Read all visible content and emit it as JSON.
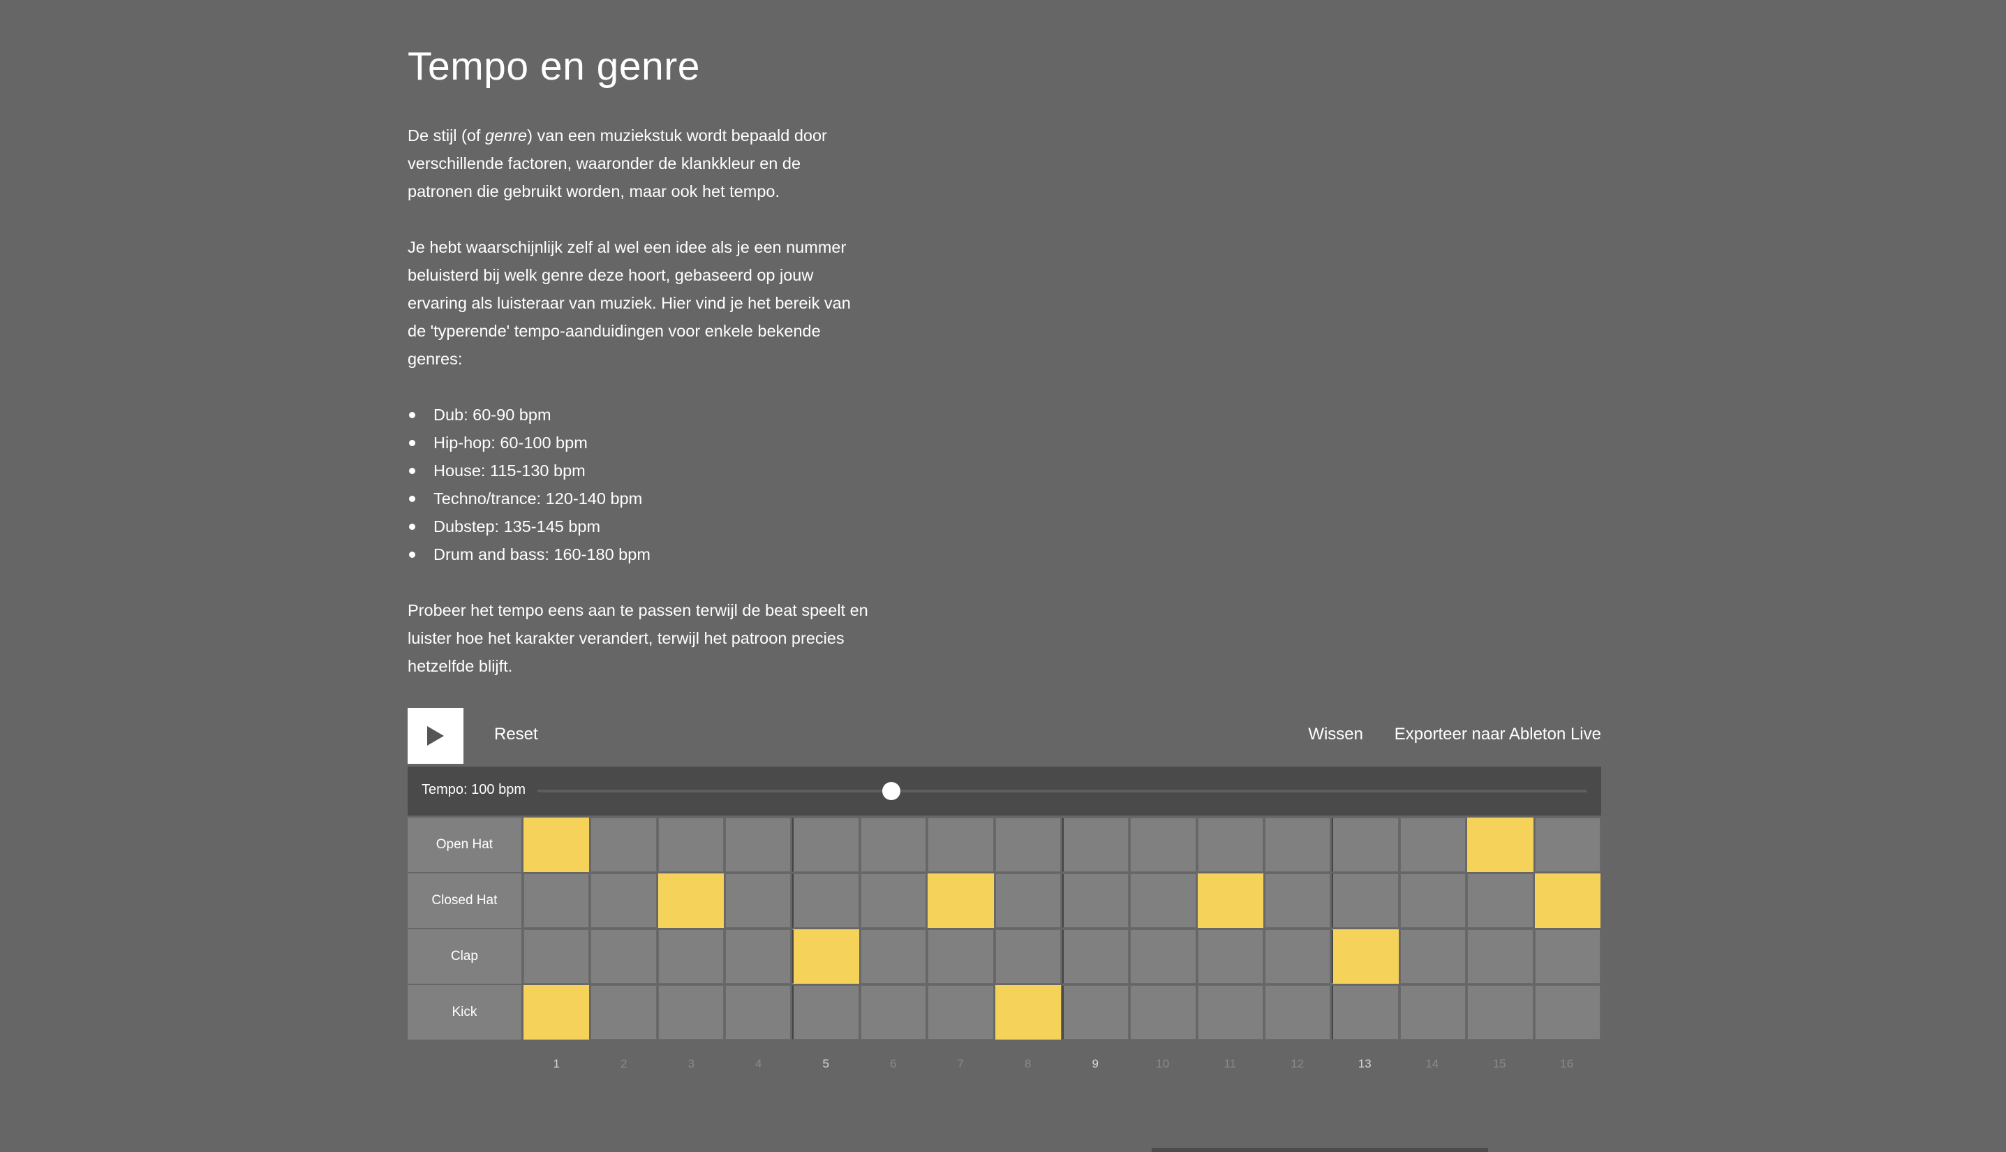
{
  "title": "Tempo en genre",
  "intro": {
    "p1_a": "De stijl (of ",
    "p1_em": "genre",
    "p1_b": ") van een muziekstuk wordt bepaald door verschillende factoren, waaronder de klankkleur en de patronen die gebruikt worden, maar ook het tempo.",
    "p2": "Je hebt waarschijnlijk zelf al wel een idee als je een nummer beluisterd bij welk genre deze hoort, gebaseerd op jouw ervaring als luisteraar van muziek. Hier vind je het bereik van de 'typerende' tempo-aanduidingen voor enkele bekende genres:",
    "genres": [
      "Dub: 60-90 bpm",
      "Hip-hop: 60-100 bpm",
      "House: 115-130 bpm",
      "Techno/trance: 120-140 bpm",
      "Dubstep: 135-145 bpm",
      "Drum and bass: 160-180 bpm"
    ],
    "p3": "Probeer het tempo eens aan te passen terwijl de beat speelt en luister hoe het karakter verandert, terwijl het patroon precies hetzelfde blijft."
  },
  "toolbar": {
    "play_icon": "play-icon",
    "reset_label": "Reset",
    "clear_label": "Wissen",
    "export_label": "Exporteer naar Ableton Live"
  },
  "tempo": {
    "label": "Tempo: 100 bpm",
    "slider_fraction": 0.337
  },
  "sequencer": {
    "active_color": "#f5d35a",
    "rows": [
      {
        "label": "Open Hat",
        "steps": [
          1,
          0,
          0,
          0,
          0,
          0,
          0,
          0,
          0,
          0,
          0,
          0,
          0,
          0,
          1,
          0
        ]
      },
      {
        "label": "Closed Hat",
        "steps": [
          0,
          0,
          1,
          0,
          0,
          0,
          1,
          0,
          0,
          0,
          1,
          0,
          0,
          0,
          0,
          1
        ]
      },
      {
        "label": "Clap",
        "steps": [
          0,
          0,
          0,
          0,
          1,
          0,
          0,
          0,
          0,
          0,
          0,
          0,
          1,
          0,
          0,
          0
        ]
      },
      {
        "label": "Kick",
        "steps": [
          1,
          0,
          0,
          0,
          0,
          0,
          0,
          1,
          0,
          0,
          0,
          0,
          0,
          0,
          0,
          0
        ]
      }
    ],
    "step_numbers": [
      "1",
      "2",
      "3",
      "4",
      "5",
      "6",
      "7",
      "8",
      "9",
      "10",
      "11",
      "12",
      "13",
      "14",
      "15",
      "16"
    ]
  }
}
